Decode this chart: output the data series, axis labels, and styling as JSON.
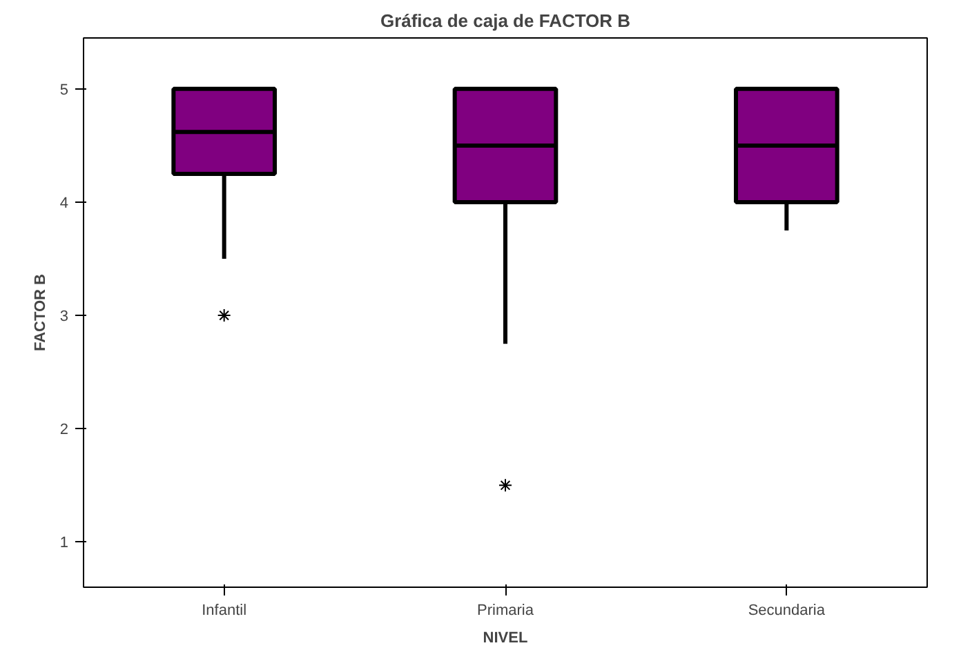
{
  "chart_data": {
    "type": "box",
    "title": "Gráfica de caja de FACTOR B",
    "xlabel": "NIVEL",
    "ylabel": "FACTOR B",
    "categories": [
      "Infantil",
      "Primaria",
      "Secundaria"
    ],
    "color": "#800080",
    "boxes": [
      {
        "low": 3.5,
        "q1": 4.25,
        "median": 4.62,
        "q3": 5,
        "high": 5,
        "outliers": [
          3
        ]
      },
      {
        "low": 2.75,
        "q1": 4,
        "median": 4.5,
        "q3": 5,
        "high": 5,
        "outliers": [
          1.5
        ]
      },
      {
        "low": 3.75,
        "q1": 4,
        "median": 4.5,
        "q3": 5,
        "high": 5
      }
    ],
    "ylim": [
      0.6,
      5.45
    ],
    "yticks": [
      1,
      2,
      3,
      4,
      5
    ],
    "grid": false
  }
}
